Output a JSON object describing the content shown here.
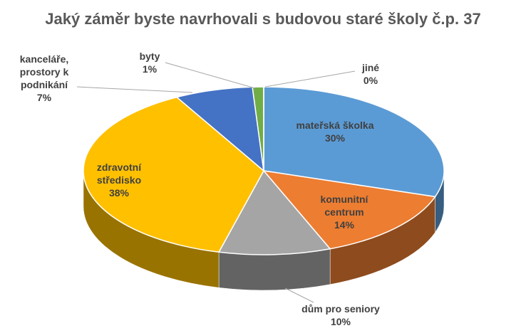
{
  "chart_data": {
    "type": "pie",
    "title": "Jaký záměr byste navrhovali s budovou staré školy č.p. 37",
    "categories": [
      "mateřská školka",
      "komunitní centrum",
      "dům pro seniory",
      "zdravotní středisko",
      "kanceláře, prostory k podnikání",
      "byty",
      "jiné"
    ],
    "values": [
      30,
      14,
      10,
      38,
      7,
      1,
      0
    ],
    "value_labels": [
      "30%",
      "14%",
      "10%",
      "38%",
      "7%",
      "1%",
      "0%"
    ],
    "colors": [
      "#5b9bd5",
      "#ed7d31",
      "#a5a5a5",
      "#ffc000",
      "#4472c4",
      "#70ad47",
      "#264478"
    ]
  }
}
